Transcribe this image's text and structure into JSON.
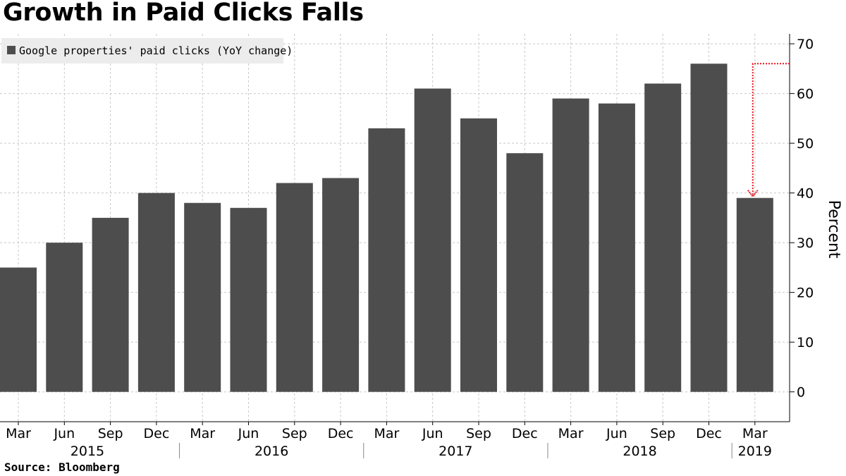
{
  "chart_data": {
    "type": "bar",
    "title": "Growth in Paid Clicks Falls",
    "source": "Source: Bloomberg",
    "ylabel": "Percent",
    "ylim": [
      -6,
      72
    ],
    "y_ticks": [
      0,
      10,
      20,
      30,
      40,
      50,
      60,
      70
    ],
    "grid": true,
    "y_axis_side": "right",
    "legend_position": "top-left",
    "categories": [
      "Mar",
      "Jun",
      "Sep",
      "Dec",
      "Mar",
      "Jun",
      "Sep",
      "Dec",
      "Mar",
      "Jun",
      "Sep",
      "Dec",
      "Mar",
      "Jun",
      "Sep",
      "Dec",
      "Mar"
    ],
    "years": [
      {
        "label": "2015",
        "start": 0,
        "end": 3
      },
      {
        "label": "2016",
        "start": 4,
        "end": 7
      },
      {
        "label": "2017",
        "start": 8,
        "end": 11
      },
      {
        "label": "2018",
        "start": 12,
        "end": 15
      },
      {
        "label": "2019",
        "start": 16,
        "end": 16
      }
    ],
    "series": [
      {
        "name": "Google properties' paid clicks (YoY change)",
        "color": "#4d4d4d",
        "values": [
          25,
          30,
          35,
          40,
          38,
          37,
          42,
          43,
          53,
          61,
          55,
          48,
          59,
          58,
          62,
          66,
          39
        ]
      }
    ],
    "annotation": {
      "type": "drop-arrow",
      "from_value": 66,
      "to_value": 39,
      "at_category_index": 16,
      "color": "#e8141c"
    }
  }
}
